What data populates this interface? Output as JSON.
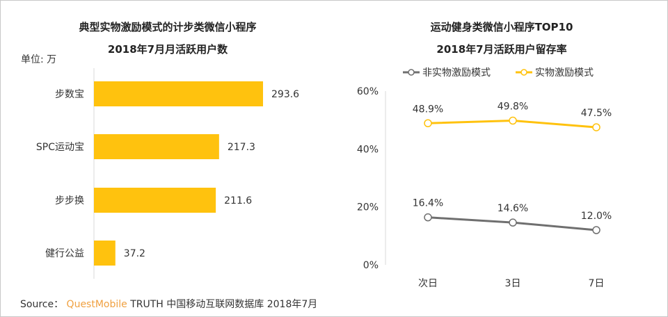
{
  "chart_data": [
    {
      "type": "bar",
      "orientation": "horizontal",
      "title": "典型实物激励模式的计步类微信小程序",
      "subtitle": "2018年7月月活跃用户数",
      "unit_label": "单位: 万",
      "categories": [
        "步数宝",
        "SPC运动宝",
        "步步换",
        "健行公益"
      ],
      "values": [
        293.6,
        217.3,
        211.6,
        37.2
      ],
      "value_labels": [
        "293.6",
        "217.3",
        "211.6",
        "37.2"
      ],
      "color": "#FFC20E",
      "xlim": [
        0,
        300
      ]
    },
    {
      "type": "line",
      "title": "运动健身类微信小程序TOP10",
      "subtitle": "2018年7月活跃用户留存率",
      "categories": [
        "次日",
        "3日",
        "7日"
      ],
      "ylim": [
        0,
        60
      ],
      "yticks": [
        "0%",
        "20%",
        "40%",
        "60%"
      ],
      "legend_position": "top",
      "series": [
        {
          "name": "非实物激励模式",
          "values": [
            16.4,
            14.6,
            12.0
          ],
          "labels": [
            "16.4%",
            "14.6%",
            "12.0%"
          ],
          "color": "#6f6f6f"
        },
        {
          "name": "实物激励模式",
          "values": [
            48.9,
            49.8,
            47.5
          ],
          "labels": [
            "48.9%",
            "49.8%",
            "47.5%"
          ],
          "color": "#FFC20E"
        }
      ]
    }
  ],
  "source": {
    "prefix": "Source：",
    "brand": "QuestMobile",
    "rest": "TRUTH 中国移动互联网数据库 2018年7月"
  }
}
